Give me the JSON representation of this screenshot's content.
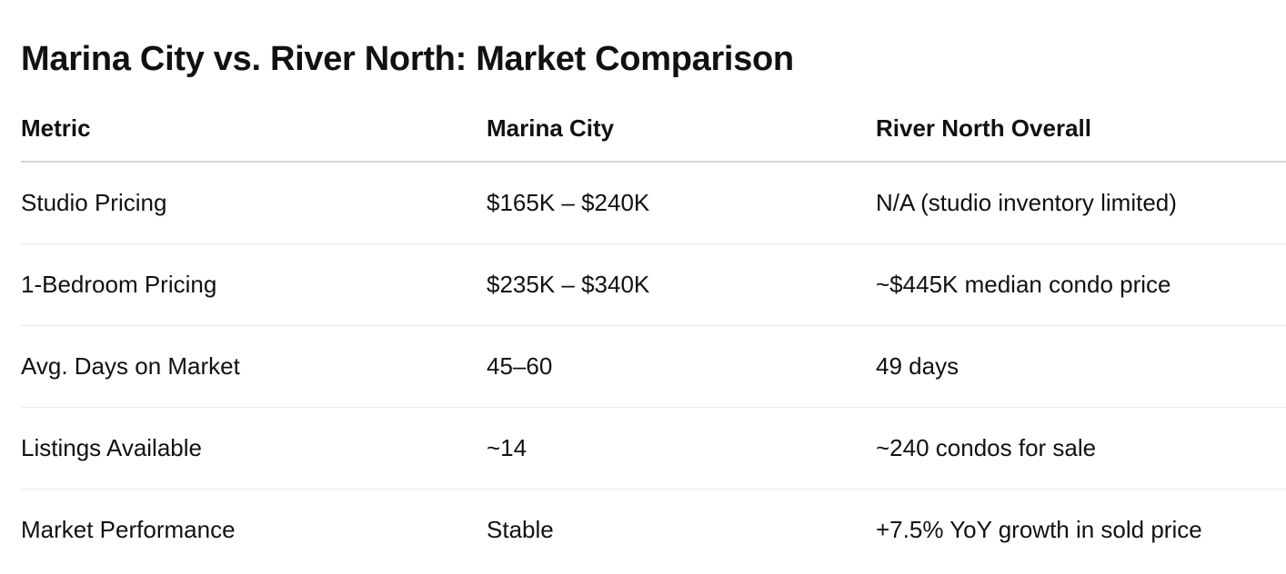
{
  "title": "Marina City vs. River North: Market Comparison",
  "table": {
    "headers": [
      "Metric",
      "Marina City",
      "River North Overall"
    ],
    "rows": [
      [
        "Studio Pricing",
        "$165K – $240K",
        "N/A (studio inventory limited)"
      ],
      [
        "1-Bedroom Pricing",
        "$235K – $340K",
        "~$445K median condo price"
      ],
      [
        "Avg. Days on Market",
        "45–60",
        "49 days"
      ],
      [
        "Listings Available",
        "~14",
        "~240 condos for sale"
      ],
      [
        "Market Performance",
        "Stable",
        "+7.5% YoY growth in sold price"
      ]
    ]
  }
}
